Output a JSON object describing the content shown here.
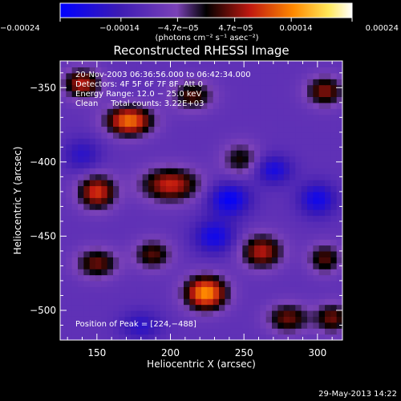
{
  "chart_data": {
    "type": "heatmap",
    "title": "Reconstructed RHESSI Image",
    "xlabel": "Heliocentric X (arcsec)",
    "ylabel": "Heliocentric Y (arcsec)",
    "xlim": [
      125,
      317
    ],
    "ylim": [
      -520,
      -332
    ],
    "x_ticks": [
      150,
      200,
      250,
      300
    ],
    "y_ticks": [
      -350,
      -400,
      -450,
      -500
    ],
    "x_tick_labels": [
      "150",
      "200",
      "250",
      "300"
    ],
    "y_tick_labels": [
      "−350",
      "−400",
      "−450",
      "−500"
    ],
    "colorbar": {
      "range": [
        -0.00024,
        0.00024
      ],
      "tick_values": [
        -0.00024,
        -0.00014,
        -4.7e-05,
        4.7e-05,
        0.00014,
        0.00024
      ],
      "tick_labels": [
        "−0.00024",
        "−0.00014",
        "−4.7e−05",
        "4.7e−05",
        "0.00014",
        "0.00024"
      ],
      "units_label": "(photons cm⁻² s⁻¹ asec⁻²)"
    },
    "annotations": {
      "time_range": "20-Nov-2003 06:36:56.000 to 06:42:34.000",
      "detectors": "Detectors: 4F 5F 6F 7F 8F, Att 0",
      "energy": "Energy Range: 12.0 − 25.0 keV",
      "clean": "Clean     Total counts: 3.22E+03",
      "peak": "Position of Peak = [224,−488]"
    },
    "peak": {
      "x": 224,
      "y": -488
    },
    "blobs": [
      {
        "x": 224,
        "y": -488,
        "amp": 0.00024,
        "sx": 10,
        "sy": 8
      },
      {
        "x": 172,
        "y": -372,
        "amp": 0.00022,
        "sx": 11,
        "sy": 7
      },
      {
        "x": 140,
        "y": -347,
        "amp": 0.00016,
        "sx": 9,
        "sy": 7
      },
      {
        "x": 150,
        "y": -420,
        "amp": 0.00018,
        "sx": 9,
        "sy": 8
      },
      {
        "x": 200,
        "y": -415,
        "amp": 0.00017,
        "sx": 14,
        "sy": 8
      },
      {
        "x": 262,
        "y": -460,
        "amp": 0.00016,
        "sx": 10,
        "sy": 8
      },
      {
        "x": 150,
        "y": -468,
        "amp": 0.00013,
        "sx": 10,
        "sy": 7
      },
      {
        "x": 215,
        "y": -355,
        "amp": 0.00012,
        "sx": 10,
        "sy": 7
      },
      {
        "x": 305,
        "y": -352,
        "amp": 0.00014,
        "sx": 9,
        "sy": 7
      },
      {
        "x": 280,
        "y": -505,
        "amp": 0.00013,
        "sx": 10,
        "sy": 7
      },
      {
        "x": 310,
        "y": -505,
        "amp": 0.00013,
        "sx": 8,
        "sy": 7
      },
      {
        "x": 305,
        "y": -465,
        "amp": 0.00012,
        "sx": 8,
        "sy": 7
      },
      {
        "x": 188,
        "y": -462,
        "amp": 0.00012,
        "sx": 9,
        "sy": 7
      },
      {
        "x": 248,
        "y": -398,
        "amp": 0.0001,
        "sx": 9,
        "sy": 8
      },
      {
        "x": 240,
        "y": -425,
        "amp": -0.00014,
        "sx": 10,
        "sy": 8
      },
      {
        "x": 300,
        "y": -425,
        "amp": -0.00012,
        "sx": 9,
        "sy": 8
      },
      {
        "x": 230,
        "y": -450,
        "amp": -0.00012,
        "sx": 10,
        "sy": 8
      },
      {
        "x": 270,
        "y": -405,
        "amp": -0.00011,
        "sx": 9,
        "sy": 7
      },
      {
        "x": 140,
        "y": -395,
        "amp": -8e-05,
        "sx": 9,
        "sy": 8
      },
      {
        "x": 180,
        "y": -510,
        "amp": -8e-05,
        "sx": 10,
        "sy": 7
      }
    ]
  },
  "footer_date": "29-May-2013 14:22"
}
